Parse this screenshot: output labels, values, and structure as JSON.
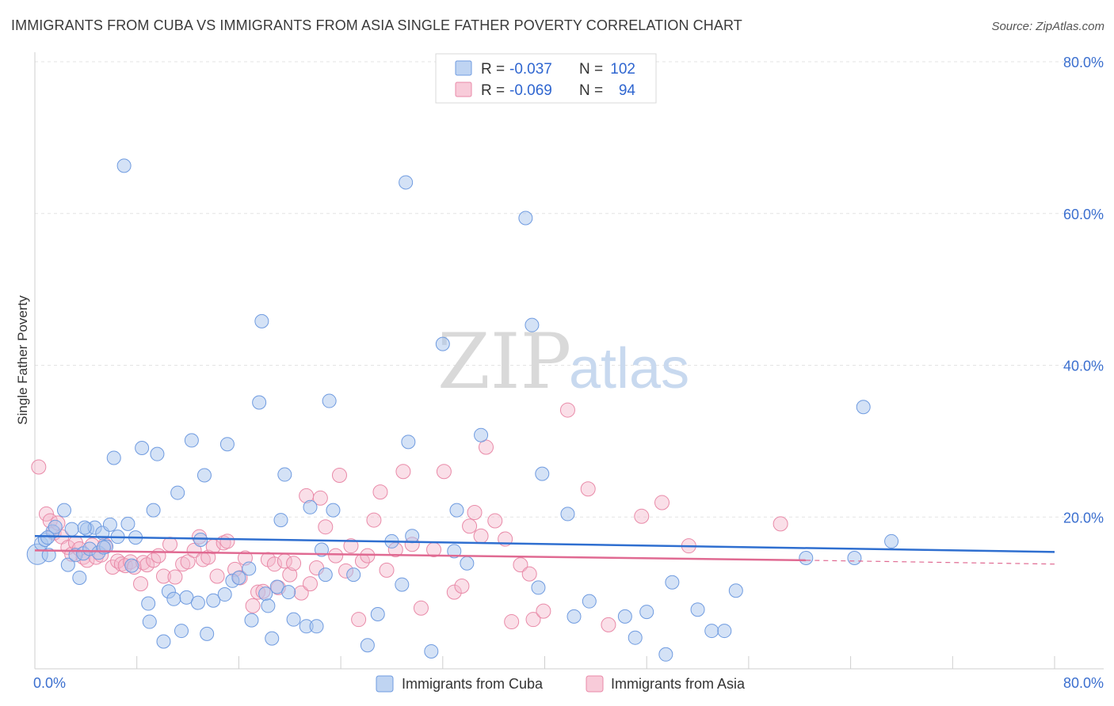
{
  "header": {
    "title": "IMMIGRANTS FROM CUBA VS IMMIGRANTS FROM ASIA SINGLE FATHER POVERTY CORRELATION CHART",
    "source": "Source: ZipAtlas.com"
  },
  "watermark": {
    "zip": "ZIP",
    "atlas": "atlas"
  },
  "colors": {
    "cuba_fill": "#a9c6ee",
    "cuba_stroke": "#6f9be0",
    "cuba_line": "#2f6fd0",
    "asia_fill": "#f5b9cc",
    "asia_stroke": "#e98aa8",
    "asia_line": "#e06a92",
    "tick": "#3b6fcf",
    "grid": "#e3e3e3"
  },
  "legend": {
    "rows": [
      {
        "r_label": "R =",
        "r_value": "-0.037",
        "n_label": "N =",
        "n_value": "102"
      },
      {
        "r_label": "R =",
        "r_value": "-0.069",
        "n_label": "N =",
        "n_value": "94"
      }
    ]
  },
  "chart_data": {
    "type": "scatter",
    "title": "IMMIGRANTS FROM CUBA VS IMMIGRANTS FROM ASIA SINGLE FATHER POVERTY CORRELATION CHART",
    "xlabel": "",
    "ylabel": "Single Father Poverty",
    "xlim": [
      0,
      80
    ],
    "ylim": [
      0,
      80
    ],
    "x_tick_labels": [
      "0.0%",
      "80.0%"
    ],
    "y_ticks": [
      20,
      40,
      60,
      80
    ],
    "y_tick_labels": [
      "20.0%",
      "40.0%",
      "60.0%",
      "80.0%"
    ],
    "grid": true,
    "series": [
      {
        "name": "Immigrants from Cuba",
        "r": -0.037,
        "n": 102,
        "trend": {
          "x0": 0,
          "y0": 17.5,
          "x1": 80,
          "y1": 15.4
        },
        "points": [
          [
            0.2,
            15.1
          ],
          [
            0.5,
            16.5
          ],
          [
            0.8,
            17.0
          ],
          [
            1.1,
            15.0
          ],
          [
            1.4,
            18.1
          ],
          [
            1.6,
            18.7
          ],
          [
            2.3,
            20.9
          ],
          [
            2.6,
            13.7
          ],
          [
            2.9,
            18.4
          ],
          [
            3.2,
            15.0
          ],
          [
            3.5,
            12.0
          ],
          [
            3.8,
            15.2
          ],
          [
            4.1,
            18.4
          ],
          [
            4.3,
            15.8
          ],
          [
            4.7,
            18.6
          ],
          [
            5.0,
            15.3
          ],
          [
            5.3,
            17.9
          ],
          [
            5.6,
            16.1
          ],
          [
            5.9,
            19.0
          ],
          [
            6.2,
            27.8
          ],
          [
            6.5,
            17.4
          ],
          [
            7.0,
            66.3
          ],
          [
            7.3,
            19.1
          ],
          [
            7.6,
            13.6
          ],
          [
            7.9,
            17.3
          ],
          [
            8.4,
            29.1
          ],
          [
            8.9,
            8.6
          ],
          [
            9.0,
            6.2
          ],
          [
            9.3,
            20.9
          ],
          [
            9.6,
            28.3
          ],
          [
            10.1,
            3.6
          ],
          [
            10.5,
            10.2
          ],
          [
            10.9,
            9.2
          ],
          [
            11.2,
            23.2
          ],
          [
            11.5,
            5.0
          ],
          [
            11.9,
            9.4
          ],
          [
            12.3,
            30.1
          ],
          [
            12.8,
            8.7
          ],
          [
            13.0,
            17.0
          ],
          [
            13.3,
            25.5
          ],
          [
            13.5,
            4.6
          ],
          [
            14.0,
            9.0
          ],
          [
            14.9,
            9.8
          ],
          [
            15.1,
            29.6
          ],
          [
            15.5,
            11.6
          ],
          [
            16.0,
            12.0
          ],
          [
            16.8,
            13.2
          ],
          [
            17.0,
            6.4
          ],
          [
            17.6,
            35.1
          ],
          [
            17.8,
            45.8
          ],
          [
            18.1,
            9.9
          ],
          [
            18.3,
            8.3
          ],
          [
            18.6,
            4.0
          ],
          [
            19.0,
            10.8
          ],
          [
            19.3,
            19.6
          ],
          [
            19.6,
            25.6
          ],
          [
            19.9,
            10.1
          ],
          [
            20.3,
            6.5
          ],
          [
            21.3,
            5.6
          ],
          [
            21.6,
            21.3
          ],
          [
            22.1,
            5.6
          ],
          [
            22.5,
            15.7
          ],
          [
            22.8,
            12.4
          ],
          [
            23.1,
            35.3
          ],
          [
            23.4,
            20.9
          ],
          [
            25.0,
            12.4
          ],
          [
            26.1,
            3.1
          ],
          [
            26.9,
            7.2
          ],
          [
            28.0,
            16.8
          ],
          [
            28.8,
            11.1
          ],
          [
            29.1,
            64.1
          ],
          [
            29.3,
            29.9
          ],
          [
            29.6,
            17.5
          ],
          [
            31.1,
            2.3
          ],
          [
            32.0,
            42.8
          ],
          [
            32.9,
            15.5
          ],
          [
            33.1,
            20.9
          ],
          [
            33.9,
            13.9
          ],
          [
            35.0,
            30.8
          ],
          [
            38.5,
            59.4
          ],
          [
            39.0,
            45.3
          ],
          [
            39.5,
            10.7
          ],
          [
            39.8,
            25.7
          ],
          [
            41.8,
            20.4
          ],
          [
            42.3,
            6.9
          ],
          [
            43.5,
            8.9
          ],
          [
            46.3,
            6.9
          ],
          [
            47.1,
            4.1
          ],
          [
            48.0,
            7.5
          ],
          [
            49.5,
            1.9
          ],
          [
            50.0,
            11.4
          ],
          [
            52.0,
            7.8
          ],
          [
            53.1,
            5.0
          ],
          [
            54.1,
            5.0
          ],
          [
            55.0,
            10.3
          ],
          [
            60.5,
            14.6
          ],
          [
            64.3,
            14.6
          ],
          [
            65.0,
            34.5
          ],
          [
            67.2,
            16.8
          ],
          [
            1.0,
            17.3
          ],
          [
            3.9,
            18.6
          ],
          [
            5.4,
            16.0
          ]
        ]
      },
      {
        "name": "Immigrants from Asia",
        "r": -0.069,
        "n": 94,
        "trend": {
          "x0": 0,
          "y0": 15.6,
          "x1": 60.5,
          "y1": 14.3
        },
        "trend_dashed": {
          "x0": 60.5,
          "y0": 14.3,
          "x1": 80,
          "y1": 13.8
        },
        "points": [
          [
            0.3,
            26.6
          ],
          [
            0.9,
            20.4
          ],
          [
            1.2,
            19.5
          ],
          [
            1.5,
            17.9
          ],
          [
            1.8,
            19.2
          ],
          [
            2.1,
            17.4
          ],
          [
            2.6,
            16.0
          ],
          [
            2.9,
            15.1
          ],
          [
            3.2,
            16.6
          ],
          [
            3.5,
            15.8
          ],
          [
            3.8,
            14.7
          ],
          [
            4.1,
            14.3
          ],
          [
            4.5,
            16.3
          ],
          [
            4.8,
            14.7
          ],
          [
            5.2,
            15.0
          ],
          [
            5.5,
            16.3
          ],
          [
            6.1,
            13.4
          ],
          [
            6.5,
            14.2
          ],
          [
            6.8,
            13.8
          ],
          [
            7.1,
            13.6
          ],
          [
            7.5,
            14.1
          ],
          [
            7.8,
            13.4
          ],
          [
            8.3,
            11.2
          ],
          [
            8.5,
            14.0
          ],
          [
            8.8,
            13.7
          ],
          [
            9.3,
            14.3
          ],
          [
            9.7,
            14.9
          ],
          [
            10.1,
            12.2
          ],
          [
            10.6,
            16.4
          ],
          [
            11.0,
            12.1
          ],
          [
            11.6,
            13.8
          ],
          [
            12.0,
            14.1
          ],
          [
            12.5,
            15.6
          ],
          [
            12.9,
            17.4
          ],
          [
            13.2,
            14.4
          ],
          [
            13.6,
            14.7
          ],
          [
            14.0,
            16.1
          ],
          [
            14.3,
            12.2
          ],
          [
            14.8,
            16.6
          ],
          [
            15.1,
            16.8
          ],
          [
            15.7,
            13.1
          ],
          [
            16.1,
            12.0
          ],
          [
            16.5,
            14.6
          ],
          [
            17.1,
            8.3
          ],
          [
            17.5,
            10.1
          ],
          [
            17.9,
            10.2
          ],
          [
            18.3,
            14.4
          ],
          [
            18.8,
            13.8
          ],
          [
            19.1,
            10.7
          ],
          [
            19.6,
            14.2
          ],
          [
            20.0,
            12.4
          ],
          [
            20.3,
            13.9
          ],
          [
            20.9,
            10.0
          ],
          [
            21.3,
            22.8
          ],
          [
            21.6,
            11.2
          ],
          [
            22.1,
            13.3
          ],
          [
            22.4,
            22.5
          ],
          [
            22.8,
            18.7
          ],
          [
            23.6,
            14.9
          ],
          [
            23.9,
            25.5
          ],
          [
            24.4,
            12.9
          ],
          [
            24.8,
            16.2
          ],
          [
            25.4,
            6.5
          ],
          [
            25.7,
            14.2
          ],
          [
            26.1,
            14.9
          ],
          [
            26.6,
            19.6
          ],
          [
            27.1,
            23.3
          ],
          [
            27.6,
            13.0
          ],
          [
            28.3,
            15.7
          ],
          [
            28.9,
            26.0
          ],
          [
            29.6,
            16.4
          ],
          [
            30.3,
            8.0
          ],
          [
            31.3,
            15.7
          ],
          [
            32.1,
            26.0
          ],
          [
            32.9,
            10.1
          ],
          [
            33.5,
            10.9
          ],
          [
            34.1,
            18.8
          ],
          [
            34.5,
            20.6
          ],
          [
            35.0,
            17.5
          ],
          [
            35.4,
            29.2
          ],
          [
            36.1,
            19.5
          ],
          [
            36.9,
            17.1
          ],
          [
            37.4,
            6.2
          ],
          [
            38.1,
            13.7
          ],
          [
            38.8,
            12.5
          ],
          [
            39.1,
            6.5
          ],
          [
            39.9,
            7.6
          ],
          [
            41.8,
            34.1
          ],
          [
            43.4,
            23.7
          ],
          [
            45.0,
            5.8
          ],
          [
            47.6,
            20.1
          ],
          [
            49.2,
            21.9
          ],
          [
            51.3,
            16.2
          ],
          [
            58.5,
            19.1
          ]
        ]
      }
    ]
  },
  "bottom_legend": {
    "items": [
      {
        "label": "Immigrants from Cuba"
      },
      {
        "label": "Immigrants from Asia"
      }
    ]
  }
}
